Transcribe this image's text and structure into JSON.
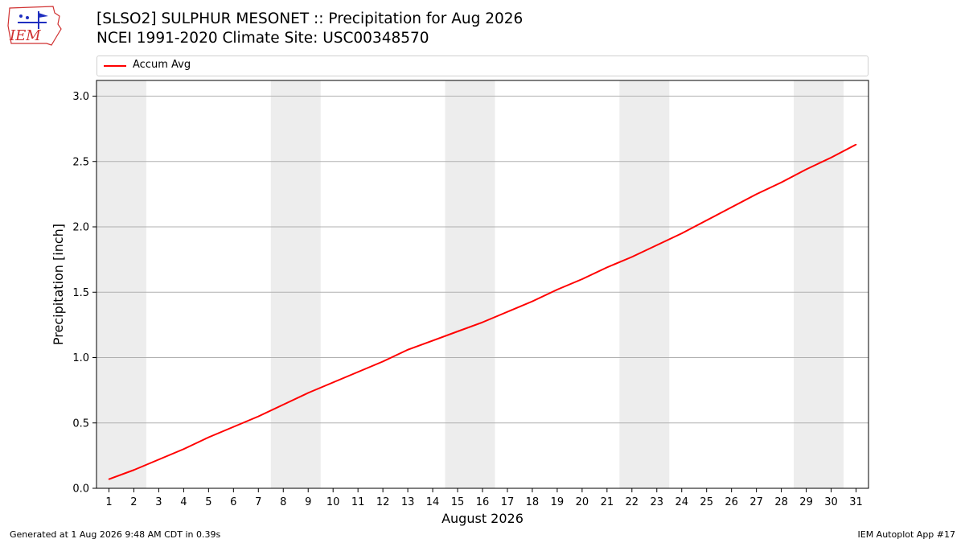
{
  "header": {
    "logo_text": "IEM",
    "title_line1": "[SLSO2] SULPHUR MESONET :: Precipitation for Aug 2026",
    "title_line2": "NCEI 1991-2020 Climate Site: USC00348570"
  },
  "footer": {
    "generated": "Generated at 1 Aug 2026 9:48 AM CDT in 0.39s",
    "app": "IEM Autoplot App #17"
  },
  "colors": {
    "line": "#ff0000",
    "weekend_band": "#ededed",
    "grid": "#b0b0b0",
    "logo": "#d03030"
  },
  "chart_data": {
    "type": "line",
    "xlabel": "August 2026",
    "ylabel": "Precipitation [inch]",
    "xlim": [
      0.5,
      31.5
    ],
    "ylim": [
      0,
      3.12
    ],
    "yticks": [
      0.0,
      0.5,
      1.0,
      1.5,
      2.0,
      2.5,
      3.0
    ],
    "ytick_labels": [
      "0.0",
      "0.5",
      "1.0",
      "1.5",
      "2.0",
      "2.5",
      "3.0"
    ],
    "xticks": [
      1,
      2,
      3,
      4,
      5,
      6,
      7,
      8,
      9,
      10,
      11,
      12,
      13,
      14,
      15,
      16,
      17,
      18,
      19,
      20,
      21,
      22,
      23,
      24,
      25,
      26,
      27,
      28,
      29,
      30,
      31
    ],
    "grid": "horizontal",
    "legend_position": "top",
    "weekend_bands": [
      [
        0.5,
        2.5
      ],
      [
        7.5,
        9.5
      ],
      [
        14.5,
        16.5
      ],
      [
        21.5,
        23.5
      ],
      [
        28.5,
        30.5
      ]
    ],
    "series": [
      {
        "name": "Accum Avg",
        "x": [
          1,
          2,
          3,
          4,
          5,
          6,
          7,
          8,
          9,
          10,
          11,
          12,
          13,
          14,
          15,
          16,
          17,
          18,
          19,
          20,
          21,
          22,
          23,
          24,
          25,
          26,
          27,
          28,
          29,
          30,
          31
        ],
        "values": [
          0.07,
          0.14,
          0.22,
          0.3,
          0.39,
          0.47,
          0.55,
          0.64,
          0.73,
          0.81,
          0.89,
          0.97,
          1.06,
          1.13,
          1.2,
          1.27,
          1.35,
          1.43,
          1.52,
          1.6,
          1.69,
          1.77,
          1.86,
          1.95,
          2.05,
          2.15,
          2.25,
          2.34,
          2.44,
          2.53,
          2.63
        ]
      }
    ]
  }
}
